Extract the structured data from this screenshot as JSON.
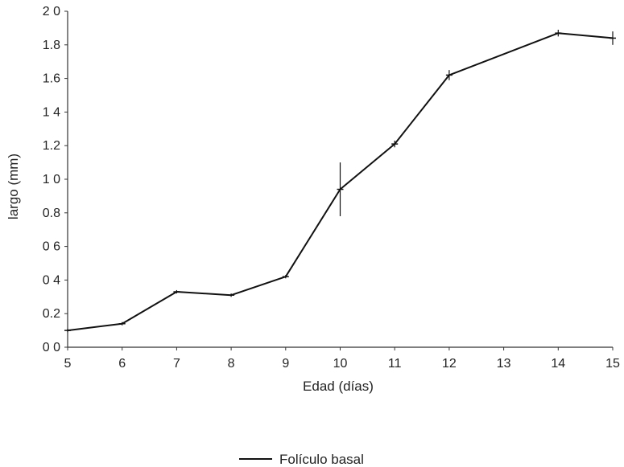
{
  "chart_data": {
    "type": "line",
    "title": "",
    "xlabel": "Edad (días)",
    "ylabel": "largo (mm)",
    "x": [
      5,
      6,
      7,
      8,
      9,
      10,
      11,
      12,
      14,
      15
    ],
    "x_ticks": [
      "5",
      "6",
      "7",
      "8",
      "9",
      "10",
      "11",
      "12",
      "13",
      "14",
      "15"
    ],
    "y_ticks": [
      "0 0",
      "0.2",
      "0 4",
      "0 6",
      "0.8",
      "1 0",
      "1.2",
      "1 4",
      "1.6",
      "1.8",
      "2 0"
    ],
    "xlim": [
      5,
      15
    ],
    "ylim": [
      0,
      2.0
    ],
    "grid": false,
    "legend_position": "bottom-center",
    "series": [
      {
        "name": "Folículo basal",
        "color": "#111111",
        "values": [
          0.1,
          0.14,
          0.33,
          0.31,
          0.42,
          0.94,
          1.21,
          1.62,
          1.87,
          1.84
        ],
        "error": [
          0.01,
          0.01,
          0.01,
          0.01,
          0.01,
          0.16,
          0.02,
          0.03,
          0.02,
          0.04
        ]
      }
    ]
  }
}
